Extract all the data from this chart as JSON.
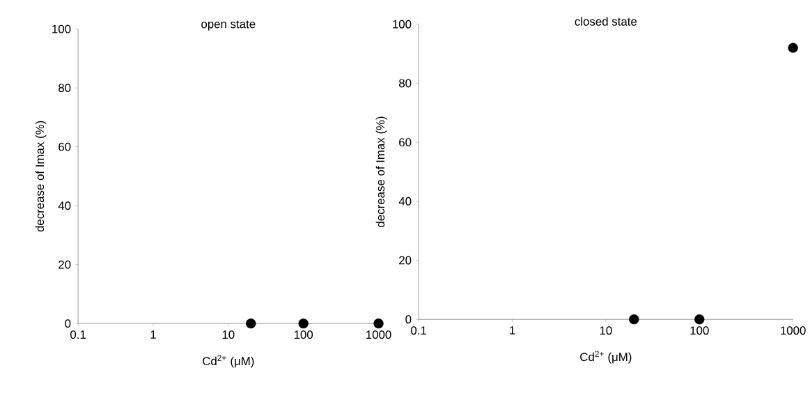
{
  "chart_data": [
    {
      "type": "scatter",
      "title": "open state",
      "xlabel": "Cd$^{2+}$ (μM)",
      "ylabel": "decrease of Imax (%)",
      "log": "x",
      "marker": "circle",
      "x": [
        20,
        100,
        1000
      ],
      "series": [
        {
          "color": "#000000",
          "values": [
            0,
            0,
            0
          ]
        }
      ],
      "xlim": [
        0.1,
        1000
      ],
      "ylim": [
        0,
        100
      ],
      "xticks": [
        0.1,
        1,
        10,
        100,
        1000
      ],
      "yticks": [
        0,
        20,
        40,
        60,
        80,
        100
      ]
    },
    {
      "type": "scatter",
      "title": "closed state",
      "xlabel": "Cd$^{2+}$ (μM)",
      "ylabel": "decrease of Imax (%)",
      "log": "x",
      "marker": "circle",
      "x": [
        20,
        100,
        1000
      ],
      "series": [
        {
          "color": "#000000",
          "values": [
            0,
            0,
            92
          ]
        }
      ],
      "xlim": [
        0.1,
        1000
      ],
      "ylim": [
        0,
        100
      ],
      "xticks": [
        0.1,
        1,
        10,
        100,
        1000
      ],
      "yticks": [
        0,
        20,
        40,
        60,
        80,
        100
      ]
    }
  ]
}
